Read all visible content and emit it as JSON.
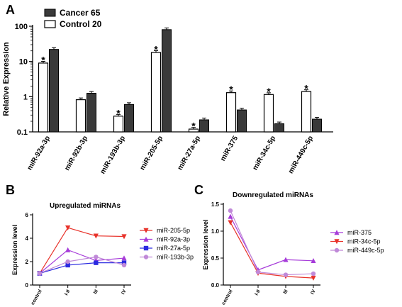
{
  "panel_labels": {
    "a": "A",
    "b": "B",
    "c": "C"
  },
  "colors": {
    "cancer_bar": "#3a3a3a",
    "control_bar": "#ffffff",
    "axis": "#000000"
  },
  "chart_data": [
    {
      "type": "bar",
      "panel": "A",
      "title": "",
      "ylabel": "Relative Expression",
      "yscale": "log",
      "ylim": [
        0.1,
        100
      ],
      "yticks": [
        "0.1",
        "1",
        "10",
        "100"
      ],
      "categories": [
        "miR-92a-3p",
        "miR-92b-3p",
        "miR-193b-3p",
        "miR-205-5p",
        "miR-27a-5p",
        "miR-375",
        "miR-34c-5p",
        "miR-449c-5p"
      ],
      "series": [
        {
          "name": "Control 20",
          "values": [
            9,
            0.82,
            0.28,
            18,
            0.12,
            1.3,
            1.15,
            1.4
          ]
        },
        {
          "name": "Cancer 65",
          "values": [
            22,
            1.25,
            0.6,
            80,
            0.22,
            0.42,
            0.17,
            0.23
          ]
        }
      ],
      "annotations": [
        "*",
        "",
        "*",
        "*",
        "*",
        "*",
        "*",
        "*"
      ],
      "legend_position": "top-left"
    },
    {
      "type": "line",
      "panel": "B",
      "title": "Upregulated miRNAs",
      "ylabel": "Expression level",
      "ylim": [
        0,
        6
      ],
      "yticks": [
        "0",
        "2",
        "4",
        "6"
      ],
      "categories": [
        "control",
        "I-II",
        "III",
        "IV"
      ],
      "series": [
        {
          "name": "miR-205-5p",
          "color": "#e8322a",
          "marker": "triangle-down",
          "values": [
            1,
            4.9,
            4.2,
            4.15
          ]
        },
        {
          "name": "miR-92a-3p",
          "color": "#a63bd9",
          "marker": "triangle-up",
          "values": [
            1,
            3.0,
            2.1,
            2.3
          ]
        },
        {
          "name": "miR-27a-5p",
          "color": "#2a2ae0",
          "marker": "square",
          "values": [
            1,
            1.7,
            1.9,
            1.9
          ]
        },
        {
          "name": "miR-193b-3p",
          "color": "#c089d8",
          "marker": "circle",
          "values": [
            1,
            2.0,
            2.4,
            1.7
          ]
        }
      ],
      "legend_position": "right"
    },
    {
      "type": "line",
      "panel": "C",
      "title": "Downregulated miRNAs",
      "ylabel": "Expression level",
      "ylim": [
        0,
        1.5
      ],
      "yticks": [
        "0.0",
        "0.5",
        "1.0",
        "1.5"
      ],
      "categories": [
        "control",
        "I-II",
        "III",
        "IV"
      ],
      "series": [
        {
          "name": "miR-375",
          "color": "#a63bd9",
          "marker": "triangle-up",
          "values": [
            1.27,
            0.28,
            0.47,
            0.45
          ]
        },
        {
          "name": "miR-34c-5p",
          "color": "#e8322a",
          "marker": "triangle-down",
          "values": [
            1.16,
            0.22,
            0.16,
            0.13
          ]
        },
        {
          "name": "miR-449c-5p",
          "color": "#c089d8",
          "marker": "circle",
          "values": [
            1.38,
            0.24,
            0.19,
            0.21
          ]
        }
      ],
      "legend_position": "right"
    }
  ]
}
